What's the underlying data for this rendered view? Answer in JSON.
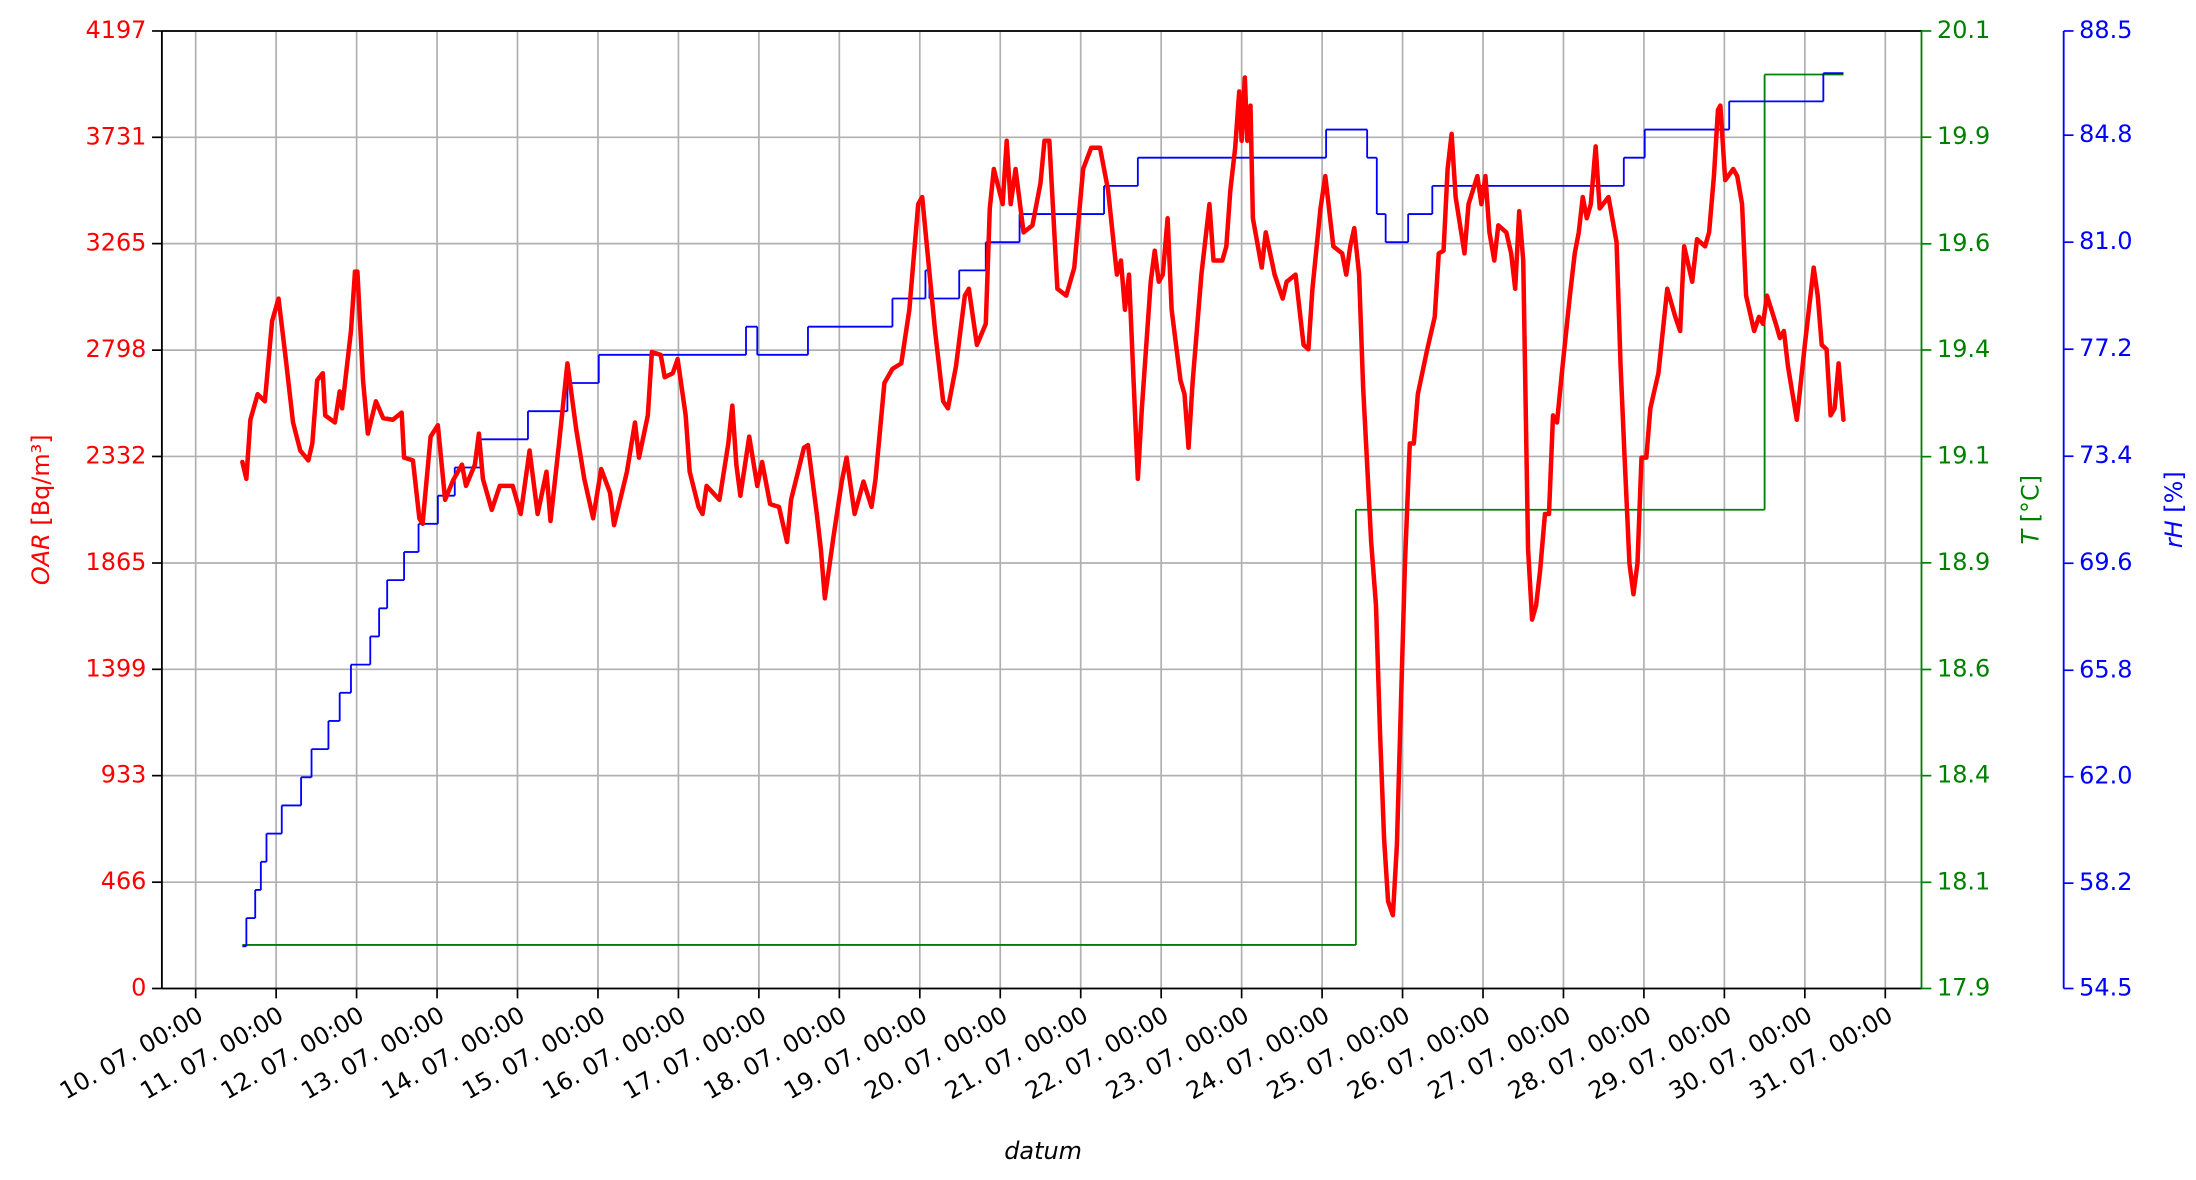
{
  "chart_data": {
    "type": "line",
    "x_label": "datum",
    "xlim": [
      9.58,
      31.45
    ],
    "xticks": [
      {
        "value": 10,
        "label": "10. 07. 00:00"
      },
      {
        "value": 11,
        "label": "11. 07. 00:00"
      },
      {
        "value": 12,
        "label": "12. 07. 00:00"
      },
      {
        "value": 13,
        "label": "13. 07. 00:00"
      },
      {
        "value": 14,
        "label": "14. 07. 00:00"
      },
      {
        "value": 15,
        "label": "15. 07. 00:00"
      },
      {
        "value": 16,
        "label": "16. 07. 00:00"
      },
      {
        "value": 17,
        "label": "17. 07. 00:00"
      },
      {
        "value": 18,
        "label": "18. 07. 00:00"
      },
      {
        "value": 19,
        "label": "19. 07. 00:00"
      },
      {
        "value": 20,
        "label": "20. 07. 00:00"
      },
      {
        "value": 21,
        "label": "21. 07. 00:00"
      },
      {
        "value": 22,
        "label": "22. 07. 00:00"
      },
      {
        "value": 23,
        "label": "23. 07. 00:00"
      },
      {
        "value": 24,
        "label": "24. 07. 00:00"
      },
      {
        "value": 25,
        "label": "25. 07. 00:00"
      },
      {
        "value": 26,
        "label": "26. 07. 00:00"
      },
      {
        "value": 27,
        "label": "27. 07. 00:00"
      },
      {
        "value": 28,
        "label": "28. 07. 00:00"
      },
      {
        "value": 29,
        "label": "29. 07. 00:00"
      },
      {
        "value": 30,
        "label": "30. 07. 00:00"
      },
      {
        "value": 31,
        "label": "31. 07. 00:00"
      }
    ],
    "grid": true,
    "y_label": "OAR [Bq/m³]",
    "ylim": [
      0,
      4197
    ],
    "yticks": [
      0,
      466,
      933,
      1399,
      1865,
      2332,
      2798,
      3265,
      3731,
      4197
    ],
    "y2_label": "T [°C]",
    "y2lim": [
      17.9,
      20.1
    ],
    "y2ticks": [
      17.9,
      {
        "value": 18.144,
        "label": "18.1"
      },
      {
        "value": 18.389,
        "label": "18.4"
      },
      {
        "value": 18.633,
        "label": "18.6"
      },
      {
        "value": 18.878,
        "label": "18.9"
      },
      {
        "value": 19.122,
        "label": "19.1"
      },
      {
        "value": 19.367,
        "label": "19.4"
      },
      {
        "value": 19.611,
        "label": "19.6"
      },
      {
        "value": 19.856,
        "label": "19.9"
      },
      20.1
    ],
    "y3_label": "rH [%]",
    "y3lim": [
      54.5,
      88.5
    ],
    "y3ticks": [
      54.5,
      {
        "value": 58.24,
        "label": "58.2"
      },
      {
        "value": 62.02,
        "label": "62.0"
      },
      65.8,
      69.6,
      73.4,
      77.2,
      {
        "value": 81,
        "label": "81.0"
      },
      84.8,
      88.5
    ],
    "series": [
      {
        "color": "#008000",
        "axis": "y2",
        "step": "post",
        "line_width": 1.3,
        "x": [
          10.58,
          24.42,
          29.5,
          30.48
        ],
        "values": [
          18.0,
          19.0,
          20.0,
          20.0
        ]
      },
      {
        "color": "#0000ff",
        "axis": "y3",
        "step": "post",
        "line_width": 1.3,
        "x": [
          10.58,
          10.63,
          10.74,
          10.81,
          10.88,
          11.07,
          11.31,
          11.44,
          11.65,
          11.79,
          11.93,
          12.17,
          12.28,
          12.38,
          12.59,
          12.77,
          13.01,
          13.22,
          13.54,
          14.13,
          14.62,
          15.01,
          16.84,
          16.98,
          17.61,
          18.66,
          19.07,
          19.12,
          19.49,
          19.82,
          20.24,
          21.29,
          21.71,
          24.05,
          24.56,
          24.68,
          24.79,
          25.07,
          25.37,
          27.75,
          28.01,
          29.06,
          30.23,
          30.48
        ],
        "values": [
          56,
          57,
          58,
          59,
          60,
          61,
          62,
          63,
          64,
          65,
          66,
          67,
          68,
          69,
          70,
          71,
          72,
          73,
          74,
          75,
          76,
          77,
          78,
          77,
          78,
          79,
          80,
          79,
          80,
          81,
          82,
          83,
          84,
          85,
          84,
          82,
          81,
          82,
          83,
          84,
          85,
          86,
          87,
          87
        ]
      },
      {
        "color": "#ff0000",
        "axis": "y",
        "line_width": 3.2,
        "x": [
          10.58,
          10.63,
          10.68,
          10.77,
          10.86,
          10.95,
          11.03,
          11.12,
          11.21,
          11.3,
          11.4,
          11.45,
          11.51,
          11.58,
          11.61,
          11.73,
          11.79,
          11.82,
          11.93,
          11.98,
          12.01,
          12.08,
          12.14,
          12.24,
          12.33,
          12.45,
          12.56,
          12.59,
          12.7,
          12.78,
          12.82,
          12.92,
          13.01,
          13.1,
          13.2,
          13.31,
          13.36,
          13.47,
          13.52,
          13.57,
          13.68,
          13.78,
          13.94,
          14.04,
          14.15,
          14.25,
          14.36,
          14.41,
          14.52,
          14.62,
          14.73,
          14.83,
          14.94,
          15.04,
          15.15,
          15.2,
          15.36,
          15.46,
          15.51,
          15.62,
          15.67,
          15.78,
          15.83,
          15.93,
          15.99,
          16.09,
          16.14,
          16.25,
          16.3,
          16.35,
          16.51,
          16.62,
          16.67,
          16.72,
          16.77,
          16.88,
          16.98,
          17.04,
          17.14,
          17.25,
          17.35,
          17.4,
          17.56,
          17.61,
          17.72,
          17.77,
          17.82,
          17.93,
          18.03,
          18.09,
          18.19,
          18.3,
          18.4,
          18.45,
          18.56,
          18.66,
          18.77,
          18.87,
          18.98,
          19.03,
          19.08,
          19.19,
          19.29,
          19.35,
          19.45,
          19.56,
          19.61,
          19.71,
          19.82,
          19.87,
          19.92,
          20.03,
          20.08,
          20.13,
          20.19,
          20.29,
          20.4,
          20.5,
          20.55,
          20.61,
          20.71,
          20.82,
          20.92,
          21.03,
          21.13,
          21.24,
          21.34,
          21.45,
          21.5,
          21.55,
          21.6,
          21.71,
          21.76,
          21.87,
          21.92,
          21.97,
          22.02,
          22.08,
          22.13,
          22.24,
          22.29,
          22.34,
          22.39,
          22.5,
          22.6,
          22.65,
          22.76,
          22.81,
          22.86,
          22.92,
          22.97,
          23.0,
          23.04,
          23.07,
          23.11,
          23.14,
          23.25,
          23.3,
          23.41,
          23.51,
          23.56,
          23.67,
          23.77,
          23.83,
          23.88,
          23.98,
          24.04,
          24.14,
          24.25,
          24.3,
          24.35,
          24.4,
          24.46,
          24.51,
          24.56,
          24.61,
          24.67,
          24.72,
          24.77,
          24.82,
          24.88,
          24.93,
          24.98,
          25.03,
          25.09,
          25.14,
          25.19,
          25.3,
          25.4,
          25.45,
          25.51,
          25.56,
          25.61,
          25.66,
          25.77,
          25.82,
          25.93,
          25.98,
          26.03,
          26.08,
          26.14,
          26.19,
          26.29,
          26.35,
          26.4,
          26.45,
          26.5,
          26.56,
          26.61,
          26.66,
          26.71,
          26.77,
          26.82,
          26.87,
          26.92,
          26.98,
          27.08,
          27.14,
          27.19,
          27.24,
          27.29,
          27.34,
          27.4,
          27.45,
          27.56,
          27.66,
          27.71,
          27.76,
          27.82,
          27.87,
          27.92,
          27.97,
          28.03,
          28.08,
          28.18,
          28.29,
          28.39,
          28.45,
          28.5,
          28.6,
          28.66,
          28.76,
          28.81,
          28.87,
          28.92,
          28.95,
          29.01,
          29.11,
          29.16,
          29.22,
          29.27,
          29.37,
          29.43,
          29.48,
          29.53,
          29.64,
          29.69,
          29.74,
          29.79,
          29.9,
          30.0,
          30.06,
          30.11,
          30.16,
          30.21,
          30.27,
          30.32,
          30.37,
          30.42,
          30.48
        ],
        "values": [
          2308,
          2234,
          2493,
          2605,
          2574,
          2926,
          3024,
          2759,
          2481,
          2358,
          2315,
          2389,
          2666,
          2697,
          2512,
          2481,
          2617,
          2543,
          2882,
          3142,
          3142,
          2666,
          2432,
          2574,
          2500,
          2493,
          2524,
          2327,
          2315,
          2061,
          2037,
          2419,
          2469,
          2142,
          2228,
          2296,
          2203,
          2296,
          2432,
          2234,
          2098,
          2203,
          2203,
          2080,
          2358,
          2080,
          2265,
          2049,
          2401,
          2740,
          2450,
          2234,
          2061,
          2277,
          2173,
          2031,
          2265,
          2481,
          2327,
          2512,
          2790,
          2777,
          2679,
          2697,
          2759,
          2512,
          2265,
          2111,
          2080,
          2203,
          2142,
          2389,
          2555,
          2296,
          2160,
          2419,
          2203,
          2308,
          2123,
          2111,
          1957,
          2142,
          2370,
          2382,
          2080,
          1926,
          1710,
          1987,
          2222,
          2327,
          2080,
          2222,
          2111,
          2234,
          2654,
          2716,
          2740,
          2975,
          3438,
          3469,
          3284,
          2882,
          2574,
          2543,
          2728,
          3037,
          3067,
          2821,
          2913,
          3419,
          3592,
          3438,
          3716,
          3438,
          3592,
          3314,
          3345,
          3530,
          3716,
          3716,
          3067,
          3037,
          3160,
          3592,
          3685,
          3685,
          3500,
          3129,
          3191,
          2975,
          3129,
          2234,
          2543,
          3098,
          3234,
          3098,
          3129,
          3376,
          2975,
          2666,
          2605,
          2370,
          2654,
          3129,
          3438,
          3191,
          3191,
          3253,
          3500,
          3685,
          3932,
          3716,
          3993,
          3716,
          3870,
          3376,
          3160,
          3314,
          3129,
          3024,
          3098,
          3129,
          2821,
          2802,
          3067,
          3419,
          3561,
          3253,
          3222,
          3129,
          3253,
          3333,
          3129,
          2635,
          2296,
          1957,
          1679,
          1123,
          660,
          383,
          321,
          630,
          1247,
          1864,
          2389,
          2389,
          2605,
          2790,
          2944,
          3222,
          3234,
          3592,
          3746,
          3469,
          3222,
          3438,
          3561,
          3438,
          3561,
          3314,
          3191,
          3345,
          3314,
          3222,
          3067,
          3407,
          3191,
          1926,
          1617,
          1679,
          1833,
          2080,
          2080,
          2512,
          2481,
          2697,
          3037,
          3222,
          3314,
          3469,
          3376,
          3438,
          3691,
          3419,
          3469,
          3271,
          2728,
          2327,
          1864,
          1728,
          1864,
          2327,
          2327,
          2543,
          2697,
          3067,
          2944,
          2882,
          3253,
          3098,
          3284,
          3253,
          3314,
          3561,
          3851,
          3870,
          3543,
          3592,
          3561,
          3438,
          3037,
          2882,
          2944,
          2913,
          3037,
          2913,
          2851,
          2882,
          2728,
          2493,
          2821,
          3006,
          3160,
          3037,
          2821,
          2802,
          2512,
          2543,
          2740,
          2493
        ]
      }
    ]
  }
}
